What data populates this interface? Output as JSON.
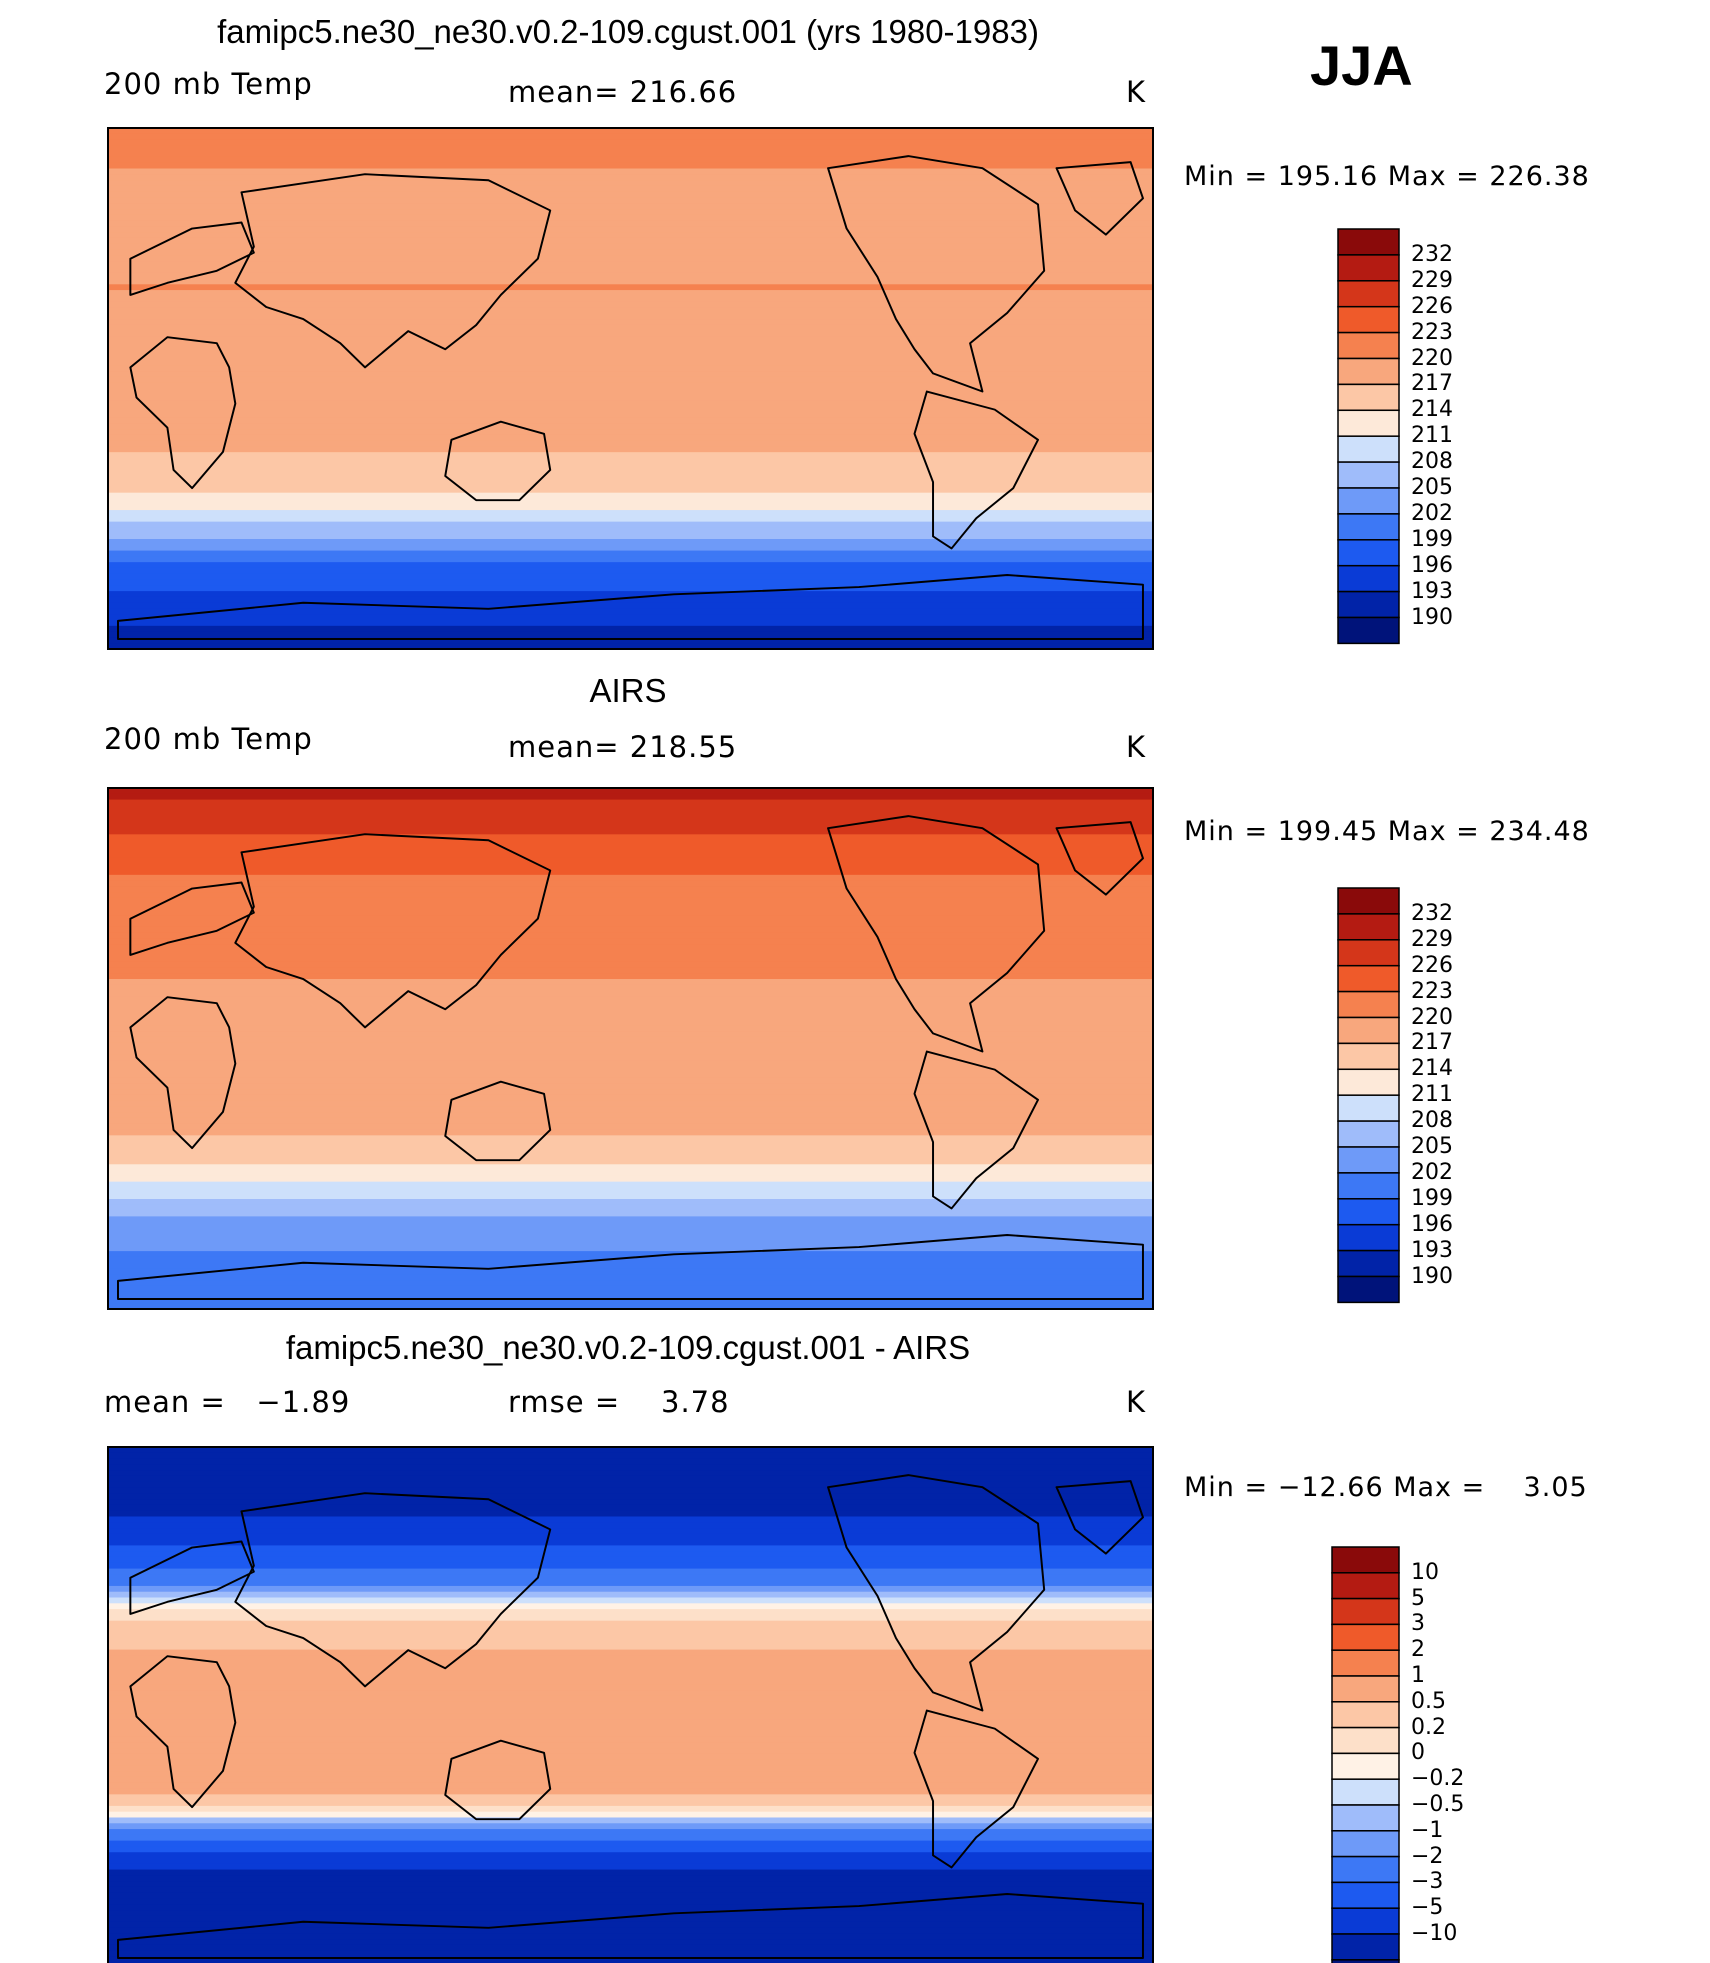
{
  "season": "JJA",
  "colors": {
    "temp_scale": [
      "#00137a",
      "#0123a8",
      "#0a3bd6",
      "#1d5af0",
      "#3d78f5",
      "#6e9af8",
      "#9fbcfa",
      "#cde0fb",
      "#fde9d9",
      "#fcc7a6",
      "#f8a77d",
      "#f5814f",
      "#ef5a2a",
      "#d4361a",
      "#b41b12",
      "#8a0a0a"
    ],
    "diff_scale": [
      "#00137a",
      "#0123a8",
      "#0a3bd6",
      "#1d5af0",
      "#3d78f5",
      "#6e9af8",
      "#9fbcfa",
      "#cde0fb",
      "#fff2e6",
      "#fde0c9",
      "#fcc7a6",
      "#f8a77d",
      "#f5814f",
      "#ef5a2a",
      "#d4361a",
      "#b41b12",
      "#8a0a0a"
    ],
    "coastline": "#000000"
  },
  "chart_data": [
    {
      "type": "heatmap",
      "title": "famipc5.ne30_ne30.v0.2-109.cgust.001 (yrs 1980-1983)",
      "left_label": "200 mb Temp",
      "center_label": "mean= 216.66",
      "right_label": "K",
      "mean": 216.66,
      "stats_text": "Min = 195.16 Max = 226.38",
      "min": 195.16,
      "max": 226.38,
      "colorbar_ticks": [
        "232",
        "229",
        "226",
        "223",
        "220",
        "217",
        "214",
        "211",
        "208",
        "205",
        "202",
        "199",
        "196",
        "193",
        "190"
      ],
      "zonal_profile": [
        {
          "lat": 90,
          "value": 222
        },
        {
          "lat": 70,
          "value": 219
        },
        {
          "lat": 50,
          "value": 217
        },
        {
          "lat": 35,
          "value": 220
        },
        {
          "lat": 20,
          "value": 219
        },
        {
          "lat": 0,
          "value": 217
        },
        {
          "lat": -15,
          "value": 218
        },
        {
          "lat": -30,
          "value": 216
        },
        {
          "lat": -40,
          "value": 212
        },
        {
          "lat": -50,
          "value": 206
        },
        {
          "lat": -60,
          "value": 199
        },
        {
          "lat": -75,
          "value": 194
        },
        {
          "lat": -90,
          "value": 192
        }
      ]
    },
    {
      "type": "heatmap",
      "title": "AIRS",
      "left_label": "200 mb Temp",
      "center_label": "mean= 218.55",
      "right_label": "K",
      "mean": 218.55,
      "stats_text": "Min = 199.45 Max = 234.48",
      "min": 199.45,
      "max": 234.48,
      "colorbar_ticks": [
        "232",
        "229",
        "226",
        "223",
        "220",
        "217",
        "214",
        "211",
        "208",
        "205",
        "202",
        "199",
        "196",
        "193",
        "190"
      ],
      "zonal_profile": [
        {
          "lat": 90,
          "value": 230
        },
        {
          "lat": 75,
          "value": 226
        },
        {
          "lat": 60,
          "value": 223
        },
        {
          "lat": 45,
          "value": 221
        },
        {
          "lat": 30,
          "value": 221
        },
        {
          "lat": 15,
          "value": 218
        },
        {
          "lat": 0,
          "value": 218
        },
        {
          "lat": -20,
          "value": 219
        },
        {
          "lat": -35,
          "value": 216
        },
        {
          "lat": -45,
          "value": 211
        },
        {
          "lat": -55,
          "value": 206
        },
        {
          "lat": -70,
          "value": 202
        },
        {
          "lat": -90,
          "value": 201
        }
      ]
    },
    {
      "type": "heatmap",
      "title": "famipc5.ne30_ne30.v0.2-109.cgust.001 - AIRS",
      "left_label": "mean =   −1.89",
      "center_label": "rmse =    3.78",
      "right_label": "K",
      "mean": -1.89,
      "rmse": 3.78,
      "stats_text": "Min = −12.66 Max =    3.05",
      "min": -12.66,
      "max": 3.05,
      "colorbar_ticks": [
        "10",
        "5",
        "3",
        "2",
        "1",
        "0.5",
        "0.2",
        "0",
        "−0.2",
        "−0.5",
        "−1",
        "−2",
        "−3",
        "−5",
        "−10"
      ],
      "zonal_profile": [
        {
          "lat": 90,
          "value": -10
        },
        {
          "lat": 70,
          "value": -6
        },
        {
          "lat": 55,
          "value": -3
        },
        {
          "lat": 45,
          "value": -1.5
        },
        {
          "lat": 35,
          "value": 0.2
        },
        {
          "lat": 25,
          "value": 0.8
        },
        {
          "lat": 10,
          "value": 1.5
        },
        {
          "lat": 0,
          "value": 1.8
        },
        {
          "lat": -15,
          "value": 1.6
        },
        {
          "lat": -28,
          "value": 1.2
        },
        {
          "lat": -36,
          "value": 0.3
        },
        {
          "lat": -42,
          "value": -1.2
        },
        {
          "lat": -50,
          "value": -3
        },
        {
          "lat": -60,
          "value": -6
        },
        {
          "lat": -90,
          "value": -9
        }
      ]
    }
  ]
}
